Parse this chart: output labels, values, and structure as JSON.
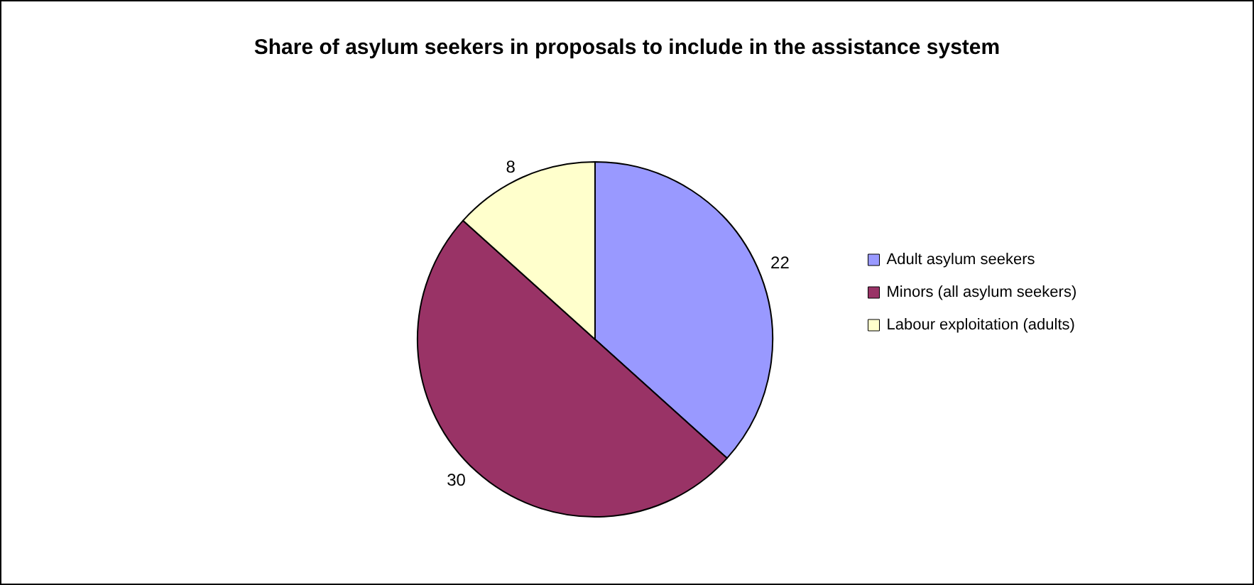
{
  "chart_data": {
    "type": "pie",
    "title": "Share of asylum seekers in proposals to include in the assistance system",
    "categories": [
      "Adult asylum seekers",
      "Minors (all asylum seekers)",
      "Labour exploitation (adults)"
    ],
    "values": [
      22,
      30,
      8
    ],
    "colors": [
      "#9999ff",
      "#993366",
      "#ffffcc"
    ],
    "data_labels": true,
    "legend": "right"
  }
}
